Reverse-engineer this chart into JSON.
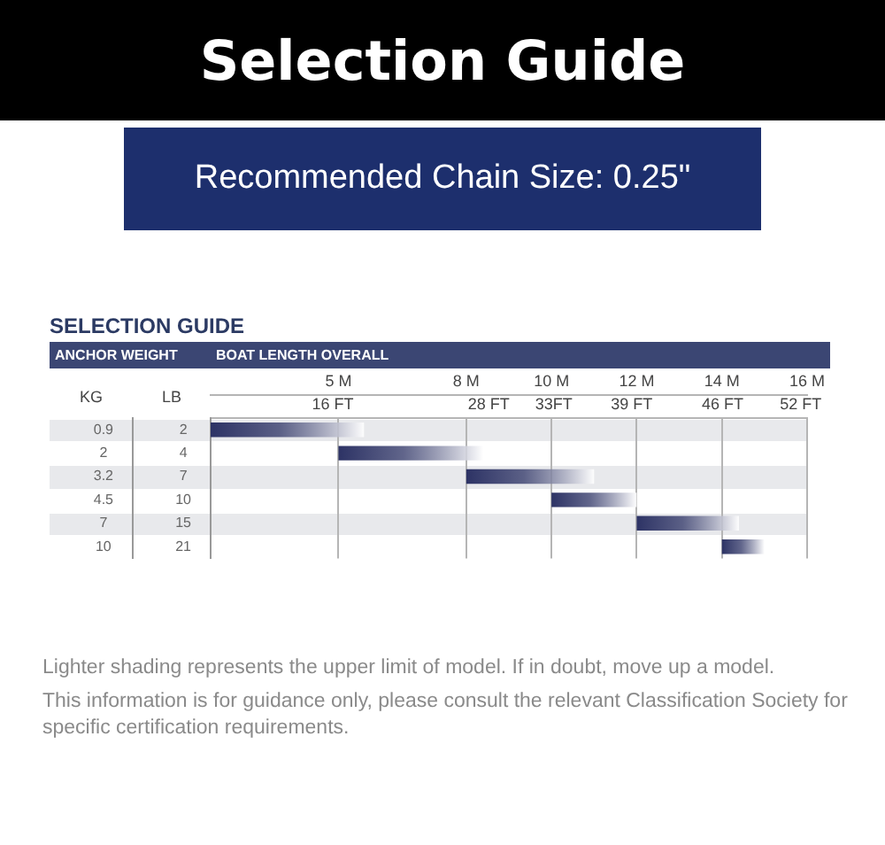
{
  "chart_data": {
    "type": "bar",
    "orientation": "horizontal",
    "title": "Selection Guide",
    "subtitle": "Recommended Chain Size: 0.25\"",
    "ylabel": "ANCHOR WEIGHT",
    "xlabel": "BOAT LENGTH OVERALL",
    "annotations": [
      "SELECTION GUIDE",
      "KG",
      "LB",
      "Lighter shading represents the upper limit of model. If in doubt, move up a model.",
      "This information is for guidance only, please consult the relevant Classification Society for specific certification requirements."
    ],
    "categories": [
      "0.9",
      "2",
      "3.2",
      "4.5",
      "7",
      "10"
    ],
    "y2_categories": [
      "2",
      "4",
      "7",
      "10",
      "15",
      "21"
    ],
    "base": [
      2,
      5,
      8,
      10,
      12,
      14
    ],
    "values": [
      3.6,
      3.4,
      3,
      2,
      2.4,
      1
    ],
    "color": "#2d3365",
    "xlim": [
      2,
      16
    ],
    "xticks": [
      {
        "value": 5,
        "label": "5 M"
      },
      {
        "value": 8,
        "label": "8 M"
      },
      {
        "value": 10,
        "label": "10 M"
      },
      {
        "value": 12,
        "label": "12 M"
      },
      {
        "value": 14,
        "label": "14 M"
      },
      {
        "value": 16,
        "label": "16 M"
      }
    ],
    "x2lim": [
      6.6,
      52.5
    ],
    "x2ticks": [
      {
        "value": 16,
        "label": "16 FT"
      },
      {
        "value": 28,
        "label": "28 FT"
      },
      {
        "value": 33,
        "label": "33FT"
      },
      {
        "value": 39,
        "label": "39 FT"
      },
      {
        "value": 46,
        "label": "46 FT"
      },
      {
        "value": 52,
        "label": "52 FT"
      }
    ],
    "grid": "x",
    "legend": false
  }
}
